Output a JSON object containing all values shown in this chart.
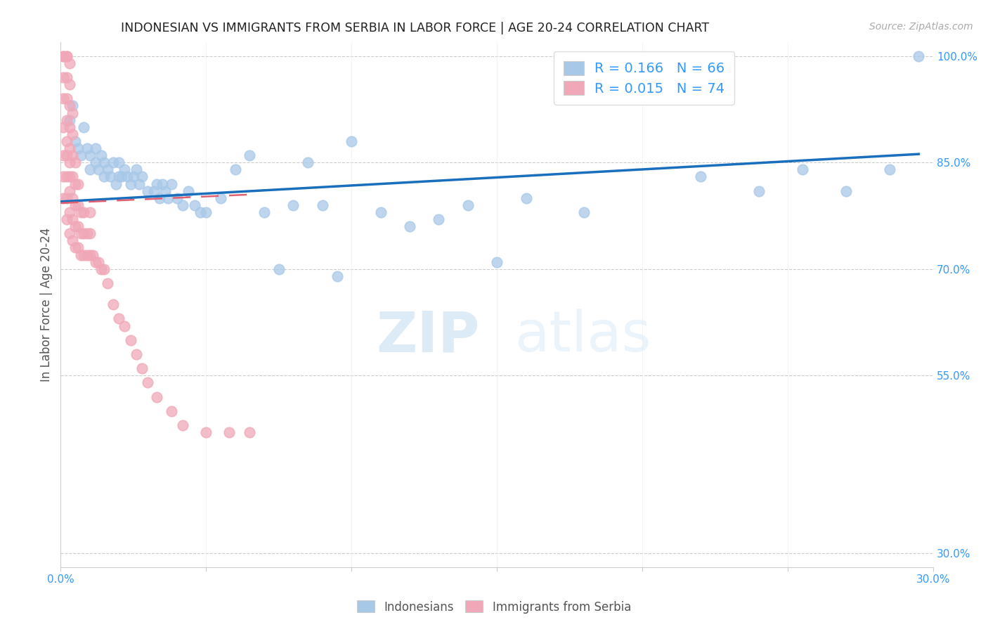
{
  "title": "INDONESIAN VS IMMIGRANTS FROM SERBIA IN LABOR FORCE | AGE 20-24 CORRELATION CHART",
  "source": "Source: ZipAtlas.com",
  "ylabel": "In Labor Force | Age 20-24",
  "xlim": [
    0.0,
    0.3
  ],
  "ylim": [
    0.28,
    1.02
  ],
  "yticks_right": [
    0.3,
    0.55,
    0.7,
    0.85,
    1.0
  ],
  "yticklabels_right": [
    "30.0%",
    "55.0%",
    "70.0%",
    "85.0%",
    "100.0%"
  ],
  "blue_color": "#a8c8e8",
  "pink_color": "#f0a8b8",
  "blue_line_color": "#1a6fbd",
  "pink_line_color": "#e06070",
  "watermark_zip": "ZIP",
  "watermark_atlas": "atlas",
  "title_color": "#222222",
  "axis_label_color": "#555555",
  "blue_scatter_x": [
    0.003,
    0.004,
    0.005,
    0.006,
    0.007,
    0.008,
    0.009,
    0.01,
    0.01,
    0.012,
    0.012,
    0.013,
    0.014,
    0.015,
    0.015,
    0.016,
    0.017,
    0.018,
    0.019,
    0.02,
    0.02,
    0.021,
    0.022,
    0.023,
    0.024,
    0.025,
    0.026,
    0.027,
    0.028,
    0.03,
    0.032,
    0.033,
    0.034,
    0.035,
    0.036,
    0.037,
    0.038,
    0.04,
    0.042,
    0.044,
    0.046,
    0.048,
    0.05,
    0.055,
    0.06,
    0.065,
    0.07,
    0.075,
    0.08,
    0.085,
    0.09,
    0.095,
    0.1,
    0.11,
    0.12,
    0.13,
    0.14,
    0.15,
    0.16,
    0.18,
    0.22,
    0.24,
    0.255,
    0.27,
    0.285,
    0.295
  ],
  "blue_scatter_y": [
    0.91,
    0.93,
    0.88,
    0.87,
    0.86,
    0.9,
    0.87,
    0.84,
    0.86,
    0.85,
    0.87,
    0.84,
    0.86,
    0.83,
    0.85,
    0.84,
    0.83,
    0.85,
    0.82,
    0.83,
    0.85,
    0.83,
    0.84,
    0.83,
    0.82,
    0.83,
    0.84,
    0.82,
    0.83,
    0.81,
    0.81,
    0.82,
    0.8,
    0.82,
    0.81,
    0.8,
    0.82,
    0.8,
    0.79,
    0.81,
    0.79,
    0.78,
    0.78,
    0.8,
    0.84,
    0.86,
    0.78,
    0.7,
    0.79,
    0.85,
    0.79,
    0.69,
    0.88,
    0.78,
    0.76,
    0.77,
    0.79,
    0.71,
    0.8,
    0.78,
    0.83,
    0.81,
    0.84,
    0.81,
    0.84,
    1.0
  ],
  "pink_scatter_x": [
    0.001,
    0.001,
    0.001,
    0.001,
    0.001,
    0.001,
    0.001,
    0.001,
    0.002,
    0.002,
    0.002,
    0.002,
    0.002,
    0.002,
    0.002,
    0.002,
    0.002,
    0.002,
    0.003,
    0.003,
    0.003,
    0.003,
    0.003,
    0.003,
    0.003,
    0.003,
    0.003,
    0.003,
    0.004,
    0.004,
    0.004,
    0.004,
    0.004,
    0.004,
    0.004,
    0.005,
    0.005,
    0.005,
    0.005,
    0.005,
    0.006,
    0.006,
    0.006,
    0.006,
    0.007,
    0.007,
    0.007,
    0.008,
    0.008,
    0.008,
    0.009,
    0.009,
    0.01,
    0.01,
    0.01,
    0.011,
    0.012,
    0.013,
    0.014,
    0.015,
    0.016,
    0.018,
    0.02,
    0.022,
    0.024,
    0.026,
    0.028,
    0.03,
    0.033,
    0.038,
    0.042,
    0.05,
    0.058,
    0.065
  ],
  "pink_scatter_y": [
    0.8,
    0.83,
    0.86,
    0.9,
    0.94,
    0.97,
    1.0,
    1.0,
    0.77,
    0.8,
    0.83,
    0.86,
    0.88,
    0.91,
    0.94,
    0.97,
    1.0,
    1.0,
    0.75,
    0.78,
    0.81,
    0.83,
    0.85,
    0.87,
    0.9,
    0.93,
    0.96,
    0.99,
    0.74,
    0.77,
    0.8,
    0.83,
    0.86,
    0.89,
    0.92,
    0.73,
    0.76,
    0.79,
    0.82,
    0.85,
    0.73,
    0.76,
    0.79,
    0.82,
    0.72,
    0.75,
    0.78,
    0.72,
    0.75,
    0.78,
    0.72,
    0.75,
    0.72,
    0.75,
    0.78,
    0.72,
    0.71,
    0.71,
    0.7,
    0.7,
    0.68,
    0.65,
    0.63,
    0.62,
    0.6,
    0.58,
    0.56,
    0.54,
    0.52,
    0.5,
    0.48,
    0.47,
    0.47,
    0.47
  ]
}
